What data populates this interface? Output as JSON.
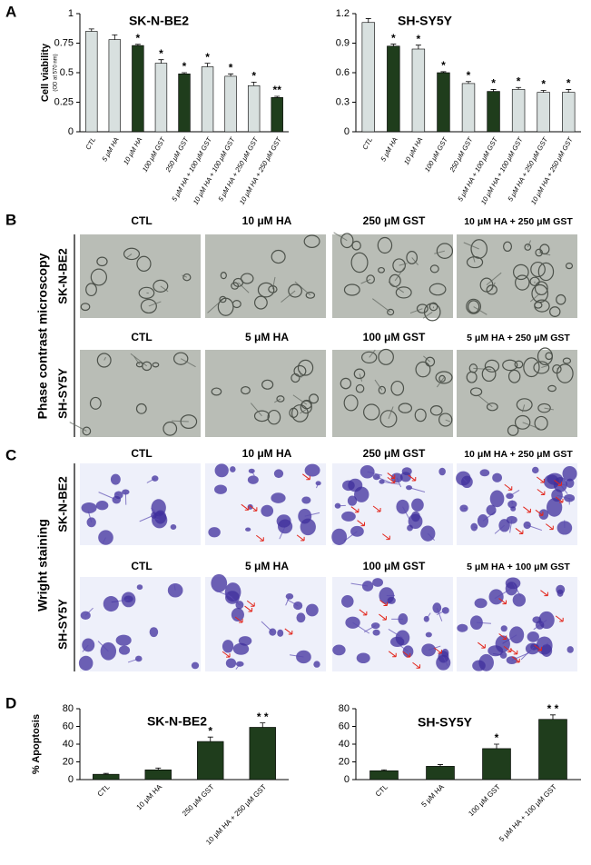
{
  "panel_labels": [
    "A",
    "B",
    "C",
    "D"
  ],
  "chart_data": [
    {
      "type": "bar",
      "title": "SK-N-BE2",
      "y_label": "Cell viability",
      "y_label_note": "(OD at 570 nm)",
      "categories": [
        "CTL",
        "5 μM HA",
        "10 μM HA",
        "100 μM GST",
        "250 μM GST",
        "5 μM HA + 100 μM GST",
        "10 μM HA + 100 μM GST",
        "5 μM HA + 250 μM GST",
        "10 μM HA + 250 μM GST"
      ],
      "values": [
        0.85,
        0.78,
        0.73,
        0.58,
        0.49,
        0.55,
        0.47,
        0.39,
        0.29
      ],
      "errors": [
        0.02,
        0.04,
        0.01,
        0.03,
        0.01,
        0.03,
        0.02,
        0.03,
        0.01
      ],
      "colors": [
        "#d8e0df",
        "#d8e0df",
        "#1f3d1c",
        "#d8e0df",
        "#1f3d1c",
        "#d8e0df",
        "#d8e0df",
        "#d8e0df",
        "#1f3d1c"
      ],
      "significance": [
        null,
        null,
        "*",
        "*",
        "*",
        "*",
        "*",
        "*",
        "**"
      ],
      "ylim": [
        0,
        1
      ],
      "yticks": [
        0,
        0.25,
        0.5,
        0.75,
        1
      ]
    },
    {
      "type": "bar",
      "title": "SH-SY5Y",
      "categories": [
        "CTL",
        "5 μM HA",
        "10 μM HA",
        "100 μM GST",
        "250 μM GST",
        "5 μM HA + 100 μM GST",
        "10 μM HA + 100 μM GST",
        "5 μM HA + 250 μM GST",
        "10 μM HA + 250 μM GST"
      ],
      "values": [
        1.11,
        0.87,
        0.84,
        0.6,
        0.49,
        0.41,
        0.43,
        0.4,
        0.4
      ],
      "errors": [
        0.04,
        0.02,
        0.04,
        0.01,
        0.02,
        0.02,
        0.02,
        0.02,
        0.03
      ],
      "colors": [
        "#d8e0df",
        "#1f3d1c",
        "#d8e0df",
        "#1f3d1c",
        "#d8e0df",
        "#1f3d1c",
        "#d8e0df",
        "#d8e0df",
        "#d8e0df"
      ],
      "significance": [
        null,
        "*",
        "*",
        "*",
        "*",
        "*",
        "*",
        "*",
        "*"
      ],
      "ylim": [
        0,
        1.2
      ],
      "yticks": [
        0,
        0.3,
        0.6,
        0.9,
        1.2
      ]
    },
    {
      "type": "bar",
      "title": "SK-N-BE2",
      "y_label": "% Apoptosis",
      "categories": [
        "CTL",
        "10 μM HA",
        "250 μM GST",
        "10 μM HA + 250 μM GST"
      ],
      "values": [
        6,
        11,
        43,
        59
      ],
      "errors": [
        1,
        2,
        5,
        5
      ],
      "color": "#1f3d1c",
      "significance": [
        null,
        null,
        "*",
        "* *"
      ],
      "ylim": [
        0,
        80
      ],
      "yticks": [
        0,
        20,
        40,
        60,
        80
      ]
    },
    {
      "type": "bar",
      "title": "SH-SY5Y",
      "categories": [
        "CTL",
        "5 μM HA",
        "100 μM GST",
        "5 μM HA + 100 μM GST"
      ],
      "values": [
        10,
        15,
        35,
        68
      ],
      "errors": [
        1,
        2,
        5,
        5
      ],
      "color": "#1f3d1c",
      "significance": [
        null,
        null,
        "*",
        "* *"
      ],
      "ylim": [
        0,
        80
      ],
      "yticks": [
        0,
        20,
        40,
        60,
        80
      ]
    }
  ],
  "microscopy": [
    {
      "side_label": "Phase contrast microscopy",
      "rows": [
        {
          "label": "SK-N-BE2",
          "columns": [
            "CTL",
            "10 μM HA",
            "250 μM GST",
            "10 μM HA + 250 μM GST"
          ]
        },
        {
          "label": "SH-SY5Y",
          "columns": [
            "CTL",
            "5 μM HA",
            "100 μM GST",
            "5 μM HA + 250 μM GST"
          ]
        }
      ]
    },
    {
      "side_label": "Wright staining",
      "rows": [
        {
          "label": "SK-N-BE2",
          "columns": [
            "CTL",
            "10 μM HA",
            "250 μM GST",
            "10 μM HA + 250 μM GST"
          ]
        },
        {
          "label": "SH-SY5Y",
          "columns": [
            "CTL",
            "5 μM HA",
            "100 μM GST",
            "5 μM HA + 100 μM GST"
          ]
        }
      ]
    }
  ]
}
